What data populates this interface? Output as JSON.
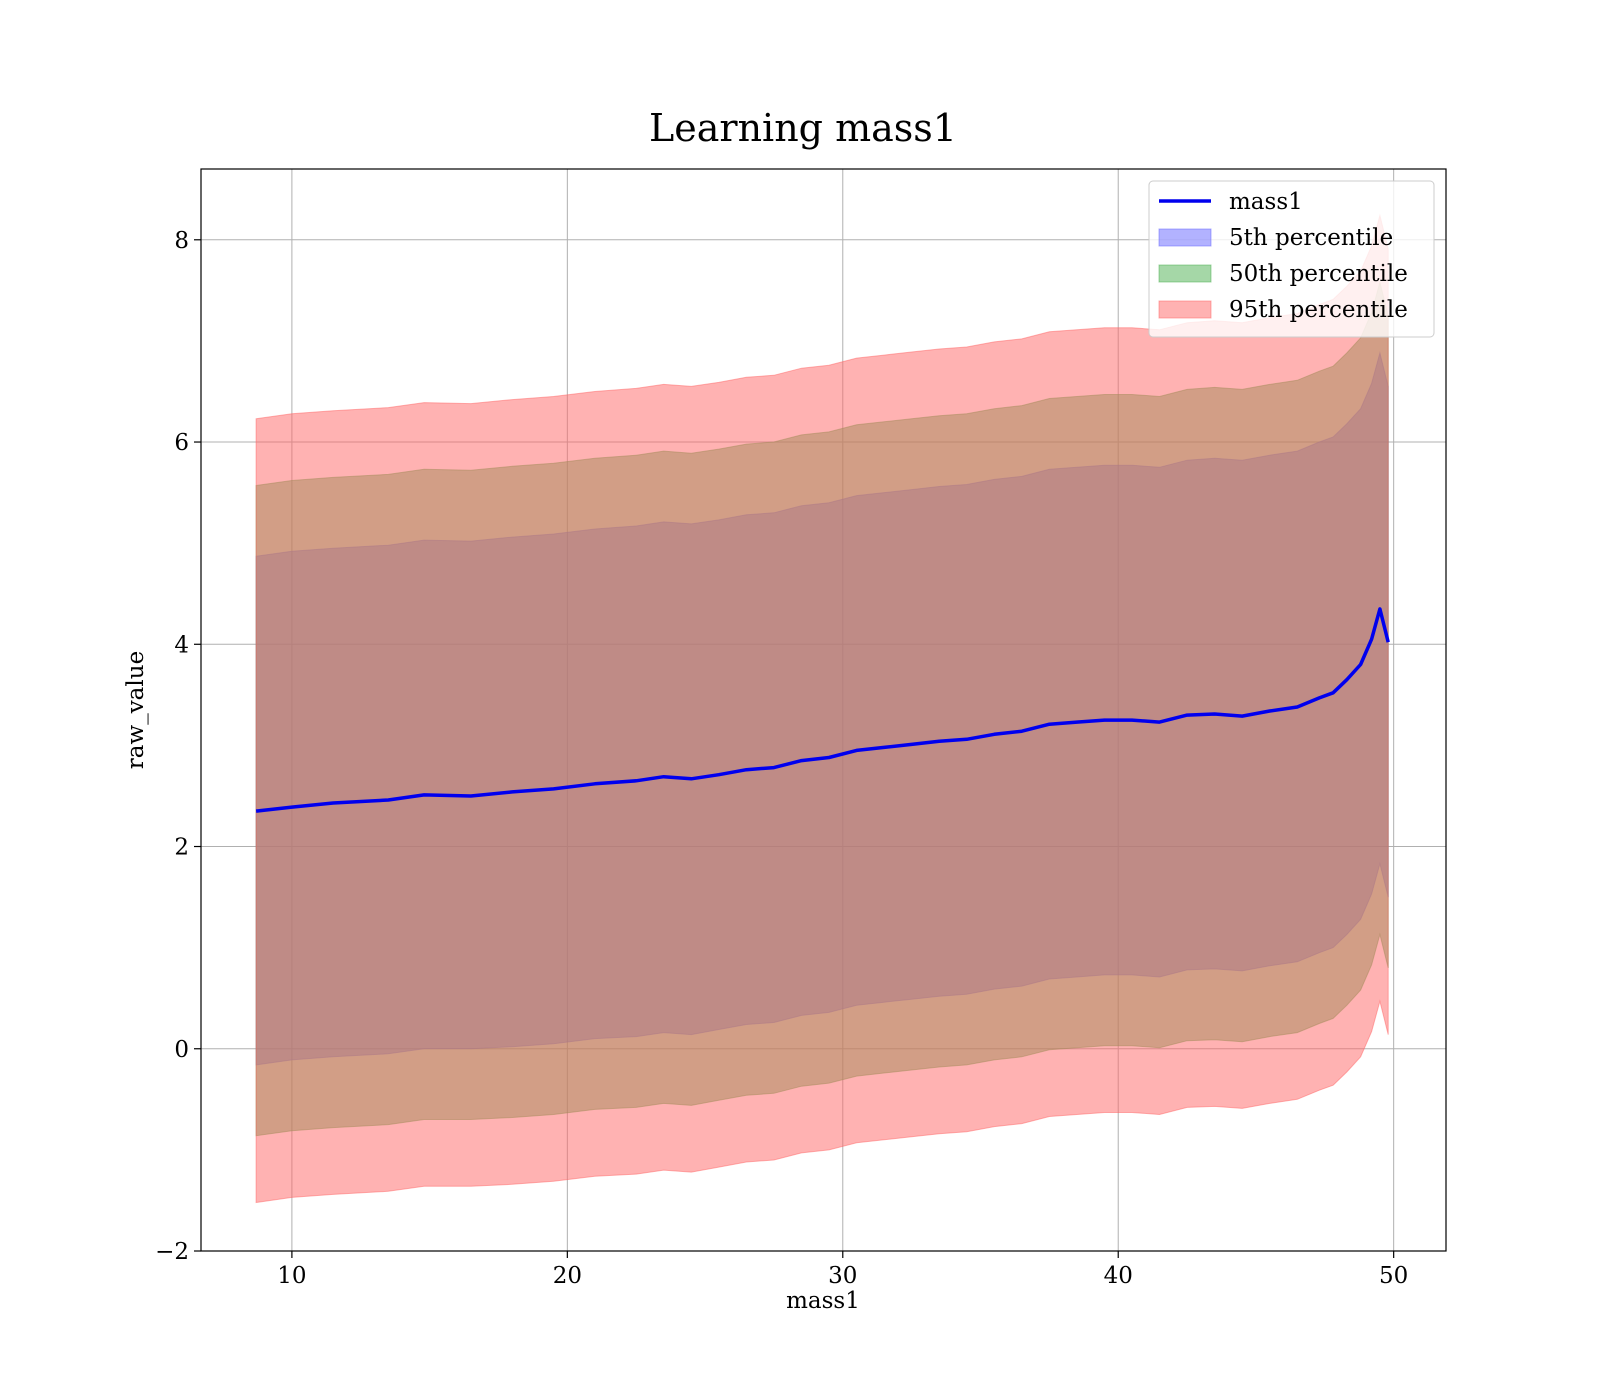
{
  "chart_data": {
    "type": "area",
    "title": "Learning mass1",
    "xlabel": "mass1",
    "ylabel": "raw_value",
    "xlim": [
      6.7,
      51.9
    ],
    "ylim": [
      -2,
      8.7
    ],
    "x_ticks": [
      10,
      20,
      30,
      40,
      50
    ],
    "x_tick_labels": [
      "10",
      "20",
      "30",
      "40",
      "50"
    ],
    "y_ticks": [
      -2,
      0,
      2,
      4,
      6,
      8
    ],
    "y_tick_labels": [
      "−2",
      "0",
      "2",
      "4",
      "6",
      "8"
    ],
    "grid": true,
    "legend_position": "top-right",
    "x": [
      8.7,
      10,
      11.5,
      13.5,
      14.8,
      16.5,
      18,
      19.5,
      21,
      22.5,
      23.5,
      24.5,
      25.5,
      26.5,
      27.5,
      28.5,
      29.5,
      30.5,
      31.5,
      32.5,
      33.5,
      34.5,
      35.5,
      36.5,
      37.5,
      38.5,
      39.5,
      40.5,
      41.5,
      42.5,
      43.5,
      44.5,
      45.5,
      46.5,
      47.3,
      47.8,
      48.3,
      48.8,
      49.2,
      49.5,
      49.8
    ],
    "series": [
      {
        "name": "mass1",
        "kind": "line",
        "color": "#0000ee",
        "values": [
          2.35,
          2.39,
          2.43,
          2.46,
          2.51,
          2.5,
          2.54,
          2.57,
          2.62,
          2.65,
          2.69,
          2.67,
          2.71,
          2.76,
          2.78,
          2.85,
          2.88,
          2.95,
          2.98,
          3.01,
          3.04,
          3.06,
          3.11,
          3.14,
          3.21,
          3.23,
          3.25,
          3.25,
          3.23,
          3.3,
          3.31,
          3.29,
          3.34,
          3.38,
          3.47,
          3.52,
          3.65,
          3.8,
          4.05,
          4.35,
          4.02
        ]
      },
      {
        "name": "5th percentile",
        "kind": "band",
        "color": "#6666ff",
        "lower": [
          -0.16,
          -0.11,
          -0.08,
          -0.05,
          0.0,
          0.0,
          0.02,
          0.05,
          0.1,
          0.12,
          0.16,
          0.14,
          0.19,
          0.24,
          0.26,
          0.33,
          0.36,
          0.43,
          0.46,
          0.49,
          0.52,
          0.54,
          0.59,
          0.62,
          0.69,
          0.71,
          0.73,
          0.73,
          0.71,
          0.78,
          0.79,
          0.77,
          0.82,
          0.86,
          0.95,
          1.0,
          1.13,
          1.28,
          1.53,
          1.83,
          1.5
        ],
        "upper": [
          4.87,
          4.92,
          4.95,
          4.98,
          5.03,
          5.02,
          5.06,
          5.09,
          5.14,
          5.17,
          5.21,
          5.19,
          5.23,
          5.28,
          5.3,
          5.37,
          5.4,
          5.47,
          5.5,
          5.53,
          5.56,
          5.58,
          5.63,
          5.66,
          5.73,
          5.75,
          5.77,
          5.77,
          5.75,
          5.82,
          5.84,
          5.82,
          5.87,
          5.91,
          6.0,
          6.05,
          6.18,
          6.33,
          6.58,
          6.88,
          6.55
        ]
      },
      {
        "name": "50th percentile",
        "kind": "band",
        "color": "#4caf50",
        "lower": [
          -0.86,
          -0.81,
          -0.78,
          -0.75,
          -0.7,
          -0.7,
          -0.68,
          -0.65,
          -0.6,
          -0.58,
          -0.54,
          -0.56,
          -0.51,
          -0.46,
          -0.44,
          -0.37,
          -0.34,
          -0.27,
          -0.24,
          -0.21,
          -0.18,
          -0.16,
          -0.11,
          -0.08,
          -0.01,
          0.01,
          0.03,
          0.03,
          0.01,
          0.08,
          0.09,
          0.07,
          0.12,
          0.16,
          0.25,
          0.3,
          0.43,
          0.58,
          0.83,
          1.13,
          0.8
        ],
        "upper": [
          5.57,
          5.62,
          5.65,
          5.68,
          5.73,
          5.72,
          5.76,
          5.79,
          5.84,
          5.87,
          5.91,
          5.89,
          5.93,
          5.98,
          6.0,
          6.07,
          6.1,
          6.17,
          6.2,
          6.23,
          6.26,
          6.28,
          6.33,
          6.36,
          6.43,
          6.45,
          6.47,
          6.47,
          6.45,
          6.52,
          6.54,
          6.52,
          6.57,
          6.61,
          6.7,
          6.75,
          6.88,
          7.03,
          7.28,
          7.58,
          7.25
        ]
      },
      {
        "name": "95th percentile",
        "kind": "band",
        "color": "#ff6666",
        "lower": [
          -1.52,
          -1.47,
          -1.44,
          -1.41,
          -1.36,
          -1.36,
          -1.34,
          -1.31,
          -1.26,
          -1.24,
          -1.2,
          -1.22,
          -1.17,
          -1.12,
          -1.1,
          -1.03,
          -1.0,
          -0.93,
          -0.9,
          -0.87,
          -0.84,
          -0.82,
          -0.77,
          -0.74,
          -0.67,
          -0.65,
          -0.63,
          -0.63,
          -0.65,
          -0.58,
          -0.57,
          -0.59,
          -0.54,
          -0.5,
          -0.41,
          -0.36,
          -0.23,
          -0.08,
          0.17,
          0.47,
          0.14
        ],
        "upper": [
          6.23,
          6.28,
          6.31,
          6.34,
          6.39,
          6.38,
          6.42,
          6.45,
          6.5,
          6.53,
          6.57,
          6.55,
          6.59,
          6.64,
          6.66,
          6.73,
          6.76,
          6.83,
          6.86,
          6.89,
          6.92,
          6.94,
          6.99,
          7.02,
          7.09,
          7.11,
          7.13,
          7.13,
          7.11,
          7.18,
          7.2,
          7.18,
          7.23,
          7.27,
          7.36,
          7.41,
          7.54,
          7.69,
          7.94,
          8.24,
          7.91
        ]
      }
    ]
  }
}
